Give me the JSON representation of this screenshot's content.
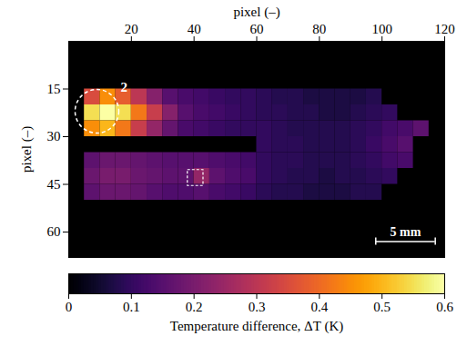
{
  "chart_data": {
    "type": "heatmap",
    "x_label": "pixel (–)",
    "y_label": "pixel (–)",
    "xlim": [
      0,
      120
    ],
    "xticks": [
      20,
      40,
      60,
      80,
      100,
      120
    ],
    "ylim": [
      0,
      68
    ],
    "yticks": [
      15,
      30,
      45,
      60
    ],
    "color": "inferno",
    "cell_size": 5,
    "cells": [
      [
        5,
        15,
        0.35
      ],
      [
        10,
        15,
        0.45
      ],
      [
        15,
        15,
        0.38
      ],
      [
        20,
        15,
        0.3
      ],
      [
        25,
        15,
        0.22
      ],
      [
        30,
        15,
        0.15
      ],
      [
        35,
        15,
        0.13
      ],
      [
        40,
        15,
        0.12
      ],
      [
        45,
        15,
        0.11
      ],
      [
        50,
        15,
        0.1
      ],
      [
        55,
        15,
        0.1
      ],
      [
        5,
        20,
        0.55
      ],
      [
        10,
        20,
        0.6
      ],
      [
        15,
        20,
        0.55
      ],
      [
        20,
        20,
        0.42
      ],
      [
        25,
        20,
        0.32
      ],
      [
        30,
        20,
        0.22
      ],
      [
        35,
        20,
        0.15
      ],
      [
        40,
        20,
        0.13
      ],
      [
        45,
        20,
        0.12
      ],
      [
        50,
        20,
        0.11
      ],
      [
        55,
        20,
        0.1
      ],
      [
        5,
        25,
        0.45
      ],
      [
        10,
        25,
        0.5
      ],
      [
        15,
        25,
        0.42
      ],
      [
        20,
        25,
        0.32
      ],
      [
        25,
        25,
        0.24
      ],
      [
        30,
        25,
        0.17
      ],
      [
        35,
        25,
        0.13
      ],
      [
        40,
        25,
        0.12
      ],
      [
        45,
        25,
        0.11
      ],
      [
        50,
        25,
        0.1
      ],
      [
        55,
        25,
        0.1
      ],
      [
        5,
        35,
        0.16
      ],
      [
        10,
        35,
        0.18
      ],
      [
        15,
        35,
        0.18
      ],
      [
        20,
        35,
        0.17
      ],
      [
        25,
        35,
        0.16
      ],
      [
        30,
        35,
        0.15
      ],
      [
        35,
        35,
        0.15
      ],
      [
        40,
        35,
        0.15
      ],
      [
        45,
        35,
        0.14
      ],
      [
        50,
        35,
        0.13
      ],
      [
        55,
        35,
        0.12
      ],
      [
        5,
        40,
        0.18
      ],
      [
        10,
        40,
        0.2
      ],
      [
        15,
        40,
        0.2
      ],
      [
        20,
        40,
        0.18
      ],
      [
        25,
        40,
        0.17
      ],
      [
        30,
        40,
        0.16
      ],
      [
        35,
        40,
        0.16
      ],
      [
        40,
        40,
        0.24
      ],
      [
        45,
        40,
        0.16
      ],
      [
        50,
        40,
        0.14
      ],
      [
        55,
        40,
        0.13
      ],
      [
        5,
        45,
        0.16
      ],
      [
        10,
        45,
        0.18
      ],
      [
        15,
        45,
        0.18
      ],
      [
        20,
        45,
        0.17
      ],
      [
        25,
        45,
        0.15
      ],
      [
        30,
        45,
        0.14
      ],
      [
        35,
        45,
        0.14
      ],
      [
        40,
        45,
        0.15
      ],
      [
        45,
        45,
        0.13
      ],
      [
        50,
        45,
        0.12
      ],
      [
        55,
        45,
        0.11
      ],
      [
        60,
        15,
        0.09
      ],
      [
        65,
        15,
        0.08
      ],
      [
        70,
        15,
        0.08
      ],
      [
        75,
        15,
        0.07
      ],
      [
        80,
        15,
        0.07
      ],
      [
        85,
        15,
        0.07
      ],
      [
        90,
        15,
        0.07
      ],
      [
        95,
        15,
        0.08
      ],
      [
        60,
        20,
        0.09
      ],
      [
        65,
        20,
        0.09
      ],
      [
        70,
        20,
        0.08
      ],
      [
        75,
        20,
        0.08
      ],
      [
        80,
        20,
        0.07
      ],
      [
        85,
        20,
        0.07
      ],
      [
        90,
        20,
        0.08
      ],
      [
        95,
        20,
        0.09
      ],
      [
        60,
        25,
        0.1
      ],
      [
        65,
        25,
        0.09
      ],
      [
        70,
        25,
        0.08
      ],
      [
        75,
        25,
        0.08
      ],
      [
        80,
        25,
        0.08
      ],
      [
        85,
        25,
        0.08
      ],
      [
        90,
        25,
        0.09
      ],
      [
        95,
        25,
        0.1
      ],
      [
        60,
        30,
        0.1
      ],
      [
        65,
        30,
        0.09
      ],
      [
        70,
        30,
        0.09
      ],
      [
        75,
        30,
        0.08
      ],
      [
        80,
        30,
        0.08
      ],
      [
        85,
        30,
        0.08
      ],
      [
        90,
        30,
        0.09
      ],
      [
        95,
        30,
        0.11
      ],
      [
        60,
        35,
        0.1
      ],
      [
        65,
        35,
        0.09
      ],
      [
        70,
        35,
        0.09
      ],
      [
        75,
        35,
        0.08
      ],
      [
        80,
        35,
        0.08
      ],
      [
        85,
        35,
        0.08
      ],
      [
        90,
        35,
        0.09
      ],
      [
        95,
        35,
        0.1
      ],
      [
        60,
        40,
        0.1
      ],
      [
        65,
        40,
        0.09
      ],
      [
        70,
        40,
        0.08
      ],
      [
        75,
        40,
        0.08
      ],
      [
        80,
        40,
        0.07
      ],
      [
        85,
        40,
        0.08
      ],
      [
        90,
        40,
        0.08
      ],
      [
        95,
        40,
        0.09
      ],
      [
        60,
        45,
        0.09
      ],
      [
        65,
        45,
        0.08
      ],
      [
        70,
        45,
        0.08
      ],
      [
        75,
        45,
        0.07
      ],
      [
        80,
        45,
        0.07
      ],
      [
        85,
        45,
        0.07
      ],
      [
        90,
        45,
        0.08
      ],
      [
        95,
        45,
        0.08
      ],
      [
        100,
        20,
        0.1
      ],
      [
        100,
        25,
        0.12
      ],
      [
        100,
        30,
        0.13
      ],
      [
        100,
        35,
        0.12
      ],
      [
        100,
        40,
        0.1
      ],
      [
        105,
        25,
        0.13
      ],
      [
        105,
        30,
        0.15
      ],
      [
        105,
        35,
        0.13
      ],
      [
        110,
        25,
        0.16
      ]
    ],
    "colorbar": {
      "label": "Temperature difference, ΔT (K)",
      "range": [
        0,
        0.6
      ],
      "ticks": [
        0,
        0.1,
        0.2,
        0.3,
        0.4,
        0.5,
        0.6
      ]
    },
    "annotations": {
      "circle": {
        "x": 9,
        "y": 22,
        "label": "2"
      },
      "square": {
        "x1": 38,
        "x2": 43,
        "y1": 40.5,
        "y2": 45.5
      },
      "scale_bar": {
        "label": "5 mm",
        "x1": 98,
        "x2": 117,
        "y": 63
      }
    }
  }
}
